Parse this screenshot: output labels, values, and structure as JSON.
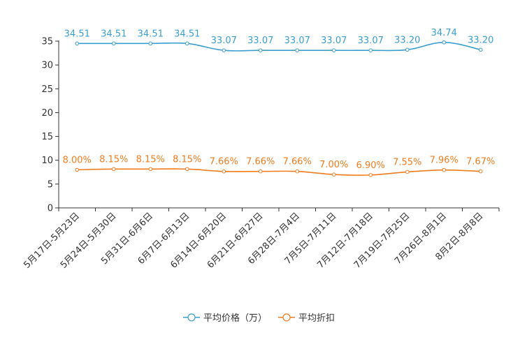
{
  "chart_data": {
    "type": "line",
    "title": "",
    "xlabel": "",
    "ylabel": "",
    "ylim": [
      0,
      35
    ],
    "yticks": [
      0,
      5,
      10,
      15,
      20,
      25,
      30,
      35
    ],
    "grid": false,
    "legend_position": "bottom",
    "categories": [
      "5月17日-5月23日",
      "5月24日-5月30日",
      "5月31日-6月6日",
      "6月7日-6月13日",
      "6月14日-6月20日",
      "6月21日-6月27日",
      "6月28日-7月4日",
      "7月5日-7月11日",
      "7月12日-7月18日",
      "7月19日-7月25日",
      "7月26日-8月1日",
      "8月2日-8月8日"
    ],
    "series": [
      {
        "name": "平均价格（万）",
        "color": "#3a9fd0",
        "values": [
          34.51,
          34.51,
          34.51,
          34.51,
          33.07,
          33.07,
          33.07,
          33.07,
          33.07,
          33.2,
          34.74,
          33.2
        ],
        "labels": [
          "34.51",
          "34.51",
          "34.51",
          "34.51",
          "33.07",
          "33.07",
          "33.07",
          "33.07",
          "33.07",
          "33.20",
          "34.74",
          "33.20"
        ]
      },
      {
        "name": "平均折扣",
        "color": "#f07c1e",
        "values": [
          8.0,
          8.15,
          8.15,
          8.15,
          7.66,
          7.66,
          7.66,
          7.0,
          6.9,
          7.55,
          7.96,
          7.67
        ],
        "labels": [
          "8.00%",
          "8.15%",
          "8.15%",
          "8.15%",
          "7.66%",
          "7.66%",
          "7.66%",
          "7.00%",
          "6.90%",
          "7.55%",
          "7.96%",
          "7.67%"
        ]
      }
    ]
  }
}
